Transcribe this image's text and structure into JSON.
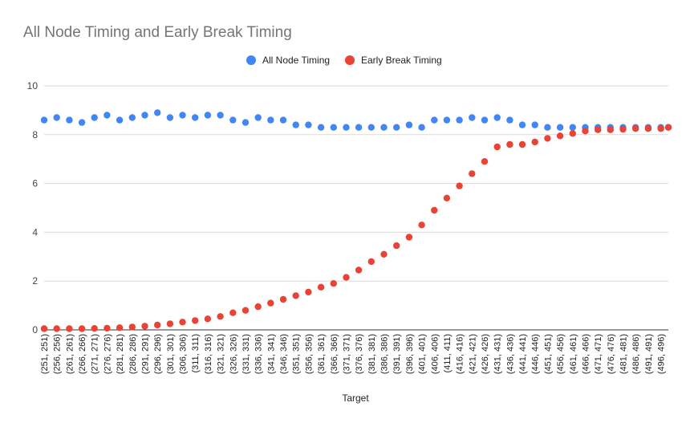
{
  "chart_data": {
    "type": "scatter",
    "title": "All Node Timing and Early Break Timing",
    "xlabel": "Target",
    "ylabel": "",
    "ylim": [
      0,
      10
    ],
    "yticks": [
      0,
      2,
      4,
      6,
      8,
      10
    ],
    "grid": true,
    "legend_position": "top",
    "x_start": 251,
    "x_end": 499,
    "x_tick_labels": [
      "(251, 251)",
      "(256, 256)",
      "(261, 261)",
      "(266, 266)",
      "(271, 271)",
      "(276, 276)",
      "(281, 281)",
      "(286, 286)",
      "(291, 291)",
      "(296, 296)",
      "(301, 301)",
      "(306, 306)",
      "(311, 311)",
      "(316, 316)",
      "(321, 321)",
      "(326, 326)",
      "(331, 331)",
      "(336, 336)",
      "(341, 341)",
      "(346, 346)",
      "(351, 351)",
      "(356, 356)",
      "(361, 361)",
      "(366, 366)",
      "(371, 371)",
      "(376, 376)",
      "(381, 381)",
      "(386, 386)",
      "(391, 391)",
      "(396, 396)",
      "(401, 401)",
      "(406, 406)",
      "(411, 411)",
      "(416, 416)",
      "(421, 421)",
      "(426, 426)",
      "(431, 431)",
      "(436, 436)",
      "(441, 441)",
      "(446, 446)",
      "(451, 451)",
      "(456, 456)",
      "(461, 461)",
      "(466, 466)",
      "(471, 471)",
      "(476, 476)",
      "(481, 481)",
      "(486, 486)",
      "(491, 491)",
      "(496, 496)"
    ],
    "series": [
      {
        "name": "All Node Timing",
        "color": "#4285f4",
        "x": [
          251,
          256,
          261,
          266,
          271,
          276,
          281,
          286,
          291,
          296,
          301,
          306,
          311,
          316,
          321,
          326,
          331,
          336,
          341,
          346,
          351,
          356,
          361,
          366,
          371,
          376,
          381,
          386,
          391,
          396,
          401,
          406,
          411,
          416,
          421,
          426,
          431,
          436,
          441,
          446,
          451,
          456,
          461,
          466,
          471,
          476,
          481,
          486,
          491,
          496,
          499
        ],
        "y": [
          8.6,
          8.7,
          8.6,
          8.5,
          8.7,
          8.8,
          8.6,
          8.7,
          8.8,
          8.9,
          8.7,
          8.8,
          8.7,
          8.8,
          8.8,
          8.6,
          8.5,
          8.7,
          8.6,
          8.6,
          8.4,
          8.4,
          8.3,
          8.3,
          8.3,
          8.3,
          8.3,
          8.3,
          8.3,
          8.4,
          8.3,
          8.6,
          8.6,
          8.6,
          8.7,
          8.6,
          8.7,
          8.6,
          8.4,
          8.4,
          8.3,
          8.3,
          8.3,
          8.3,
          8.3,
          8.3,
          8.3,
          8.3,
          8.3,
          8.3,
          8.3
        ]
      },
      {
        "name": "Early Break Timing",
        "color": "#ea4335",
        "x": [
          251,
          256,
          261,
          266,
          271,
          276,
          281,
          286,
          291,
          296,
          301,
          306,
          311,
          316,
          321,
          326,
          331,
          336,
          341,
          346,
          351,
          356,
          361,
          366,
          371,
          376,
          381,
          386,
          391,
          396,
          401,
          406,
          411,
          416,
          421,
          426,
          431,
          436,
          441,
          446,
          451,
          456,
          461,
          466,
          471,
          476,
          481,
          486,
          491,
          496,
          499
        ],
        "y": [
          0.05,
          0.05,
          0.05,
          0.05,
          0.06,
          0.07,
          0.09,
          0.12,
          0.15,
          0.2,
          0.25,
          0.32,
          0.38,
          0.45,
          0.55,
          0.7,
          0.8,
          0.95,
          1.1,
          1.25,
          1.4,
          1.55,
          1.75,
          1.9,
          2.15,
          2.45,
          2.8,
          3.1,
          3.45,
          3.8,
          4.3,
          4.9,
          5.4,
          5.9,
          6.4,
          6.9,
          7.5,
          7.6,
          7.6,
          7.7,
          7.85,
          7.95,
          8.05,
          8.15,
          8.2,
          8.2,
          8.22,
          8.25,
          8.25,
          8.25,
          8.3
        ]
      }
    ]
  }
}
